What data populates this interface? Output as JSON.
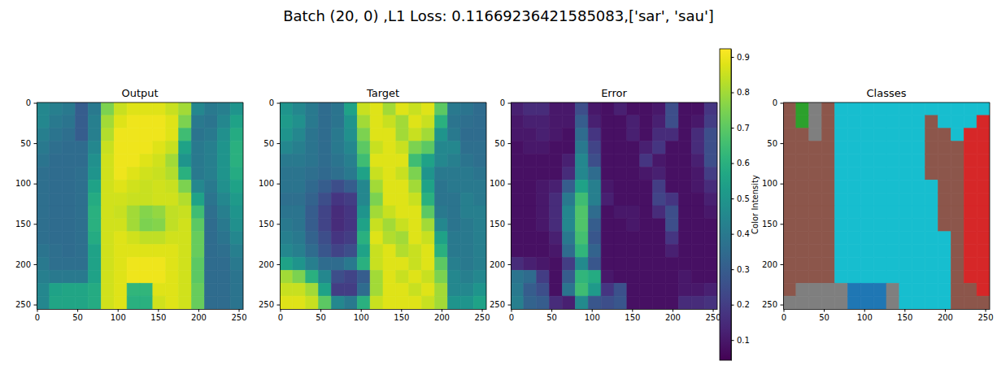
{
  "title": "Batch (20, 0) ,L1 Loss: 0.11669236421585083,['sar', 'sau']",
  "chart_data": [
    {
      "type": "heatmap",
      "title": "Output",
      "xlim": [
        -0.5,
        255.5
      ],
      "ylim": [
        255.5,
        -0.5
      ],
      "xticks": [
        0,
        50,
        100,
        150,
        200,
        250
      ],
      "yticks": [
        0,
        50,
        100,
        150,
        200,
        250
      ],
      "cells": [
        [
          0.45,
          0.42,
          0.4,
          0.3,
          0.4,
          0.75,
          0.85,
          0.88,
          0.88,
          0.88,
          0.85,
          0.8,
          0.45,
          0.4,
          0.42,
          0.5
        ],
        [
          0.45,
          0.4,
          0.38,
          0.3,
          0.42,
          0.8,
          0.88,
          0.9,
          0.9,
          0.9,
          0.88,
          0.75,
          0.4,
          0.38,
          0.45,
          0.55
        ],
        [
          0.42,
          0.38,
          0.36,
          0.3,
          0.42,
          0.82,
          0.9,
          0.9,
          0.9,
          0.9,
          0.88,
          0.65,
          0.38,
          0.4,
          0.48,
          0.58
        ],
        [
          0.4,
          0.36,
          0.35,
          0.35,
          0.45,
          0.85,
          0.9,
          0.9,
          0.9,
          0.88,
          0.85,
          0.55,
          0.4,
          0.42,
          0.5,
          0.6
        ],
        [
          0.38,
          0.35,
          0.35,
          0.35,
          0.48,
          0.86,
          0.9,
          0.9,
          0.88,
          0.86,
          0.8,
          0.5,
          0.4,
          0.42,
          0.5,
          0.6
        ],
        [
          0.36,
          0.35,
          0.35,
          0.36,
          0.5,
          0.86,
          0.9,
          0.88,
          0.86,
          0.85,
          0.82,
          0.6,
          0.4,
          0.42,
          0.5,
          0.58
        ],
        [
          0.36,
          0.35,
          0.35,
          0.36,
          0.55,
          0.86,
          0.88,
          0.86,
          0.85,
          0.86,
          0.85,
          0.75,
          0.45,
          0.4,
          0.48,
          0.55
        ],
        [
          0.36,
          0.35,
          0.35,
          0.36,
          0.58,
          0.86,
          0.86,
          0.85,
          0.85,
          0.86,
          0.86,
          0.82,
          0.55,
          0.38,
          0.45,
          0.52
        ],
        [
          0.36,
          0.35,
          0.35,
          0.36,
          0.6,
          0.86,
          0.85,
          0.8,
          0.76,
          0.78,
          0.84,
          0.85,
          0.65,
          0.36,
          0.42,
          0.5
        ],
        [
          0.36,
          0.35,
          0.35,
          0.36,
          0.6,
          0.86,
          0.86,
          0.8,
          0.75,
          0.76,
          0.84,
          0.86,
          0.7,
          0.35,
          0.4,
          0.48
        ],
        [
          0.36,
          0.35,
          0.35,
          0.36,
          0.58,
          0.86,
          0.88,
          0.86,
          0.84,
          0.84,
          0.86,
          0.86,
          0.72,
          0.35,
          0.38,
          0.45
        ],
        [
          0.38,
          0.36,
          0.35,
          0.36,
          0.55,
          0.86,
          0.88,
          0.88,
          0.88,
          0.88,
          0.88,
          0.86,
          0.72,
          0.35,
          0.36,
          0.42
        ],
        [
          0.4,
          0.36,
          0.36,
          0.36,
          0.55,
          0.86,
          0.88,
          0.9,
          0.9,
          0.9,
          0.88,
          0.86,
          0.7,
          0.35,
          0.35,
          0.4
        ],
        [
          0.42,
          0.4,
          0.4,
          0.4,
          0.55,
          0.86,
          0.88,
          0.9,
          0.9,
          0.9,
          0.88,
          0.86,
          0.7,
          0.35,
          0.35,
          0.38
        ],
        [
          0.45,
          0.55,
          0.56,
          0.56,
          0.58,
          0.86,
          0.88,
          0.62,
          0.62,
          0.88,
          0.88,
          0.86,
          0.72,
          0.35,
          0.35,
          0.38
        ],
        [
          0.45,
          0.56,
          0.56,
          0.56,
          0.58,
          0.86,
          0.88,
          0.6,
          0.6,
          0.86,
          0.88,
          0.86,
          0.72,
          0.35,
          0.35,
          0.38
        ]
      ]
    },
    {
      "type": "heatmap",
      "title": "Target",
      "xlim": [
        -0.5,
        255.5
      ],
      "ylim": [
        255.5,
        -0.5
      ],
      "xticks": [
        0,
        50,
        100,
        150,
        200,
        250
      ],
      "yticks": [
        0,
        50,
        100,
        150,
        200,
        250
      ],
      "cells": [
        [
          0.5,
          0.45,
          0.4,
          0.35,
          0.38,
          0.55,
          0.85,
          0.88,
          0.8,
          0.88,
          0.85,
          0.88,
          0.7,
          0.4,
          0.38,
          0.35
        ],
        [
          0.52,
          0.48,
          0.4,
          0.35,
          0.38,
          0.5,
          0.8,
          0.88,
          0.85,
          0.8,
          0.88,
          0.85,
          0.6,
          0.38,
          0.36,
          0.35
        ],
        [
          0.5,
          0.45,
          0.38,
          0.35,
          0.4,
          0.48,
          0.75,
          0.88,
          0.88,
          0.8,
          0.85,
          0.8,
          0.5,
          0.4,
          0.35,
          0.35
        ],
        [
          0.45,
          0.42,
          0.38,
          0.35,
          0.4,
          0.45,
          0.7,
          0.85,
          0.88,
          0.85,
          0.75,
          0.7,
          0.45,
          0.45,
          0.36,
          0.36
        ],
        [
          0.4,
          0.4,
          0.38,
          0.35,
          0.38,
          0.42,
          0.65,
          0.88,
          0.88,
          0.88,
          0.65,
          0.55,
          0.45,
          0.42,
          0.38,
          0.36
        ],
        [
          0.38,
          0.38,
          0.36,
          0.34,
          0.36,
          0.4,
          0.55,
          0.85,
          0.88,
          0.85,
          0.75,
          0.5,
          0.4,
          0.4,
          0.4,
          0.38
        ],
        [
          0.38,
          0.38,
          0.34,
          0.3,
          0.25,
          0.3,
          0.45,
          0.8,
          0.88,
          0.88,
          0.8,
          0.55,
          0.38,
          0.4,
          0.4,
          0.4
        ],
        [
          0.36,
          0.36,
          0.32,
          0.25,
          0.18,
          0.2,
          0.45,
          0.75,
          0.88,
          0.88,
          0.85,
          0.6,
          0.38,
          0.38,
          0.42,
          0.4
        ],
        [
          0.38,
          0.38,
          0.3,
          0.22,
          0.15,
          0.18,
          0.5,
          0.8,
          0.85,
          0.88,
          0.88,
          0.7,
          0.4,
          0.38,
          0.42,
          0.42
        ],
        [
          0.4,
          0.38,
          0.3,
          0.22,
          0.15,
          0.18,
          0.55,
          0.85,
          0.8,
          0.85,
          0.88,
          0.8,
          0.45,
          0.38,
          0.4,
          0.42
        ],
        [
          0.42,
          0.4,
          0.32,
          0.25,
          0.18,
          0.2,
          0.6,
          0.88,
          0.82,
          0.8,
          0.88,
          0.85,
          0.55,
          0.4,
          0.4,
          0.42
        ],
        [
          0.45,
          0.42,
          0.35,
          0.28,
          0.22,
          0.25,
          0.55,
          0.85,
          0.88,
          0.82,
          0.85,
          0.88,
          0.6,
          0.4,
          0.4,
          0.42
        ],
        [
          0.55,
          0.5,
          0.42,
          0.35,
          0.35,
          0.4,
          0.6,
          0.85,
          0.88,
          0.88,
          0.85,
          0.88,
          0.7,
          0.42,
          0.4,
          0.42
        ],
        [
          0.8,
          0.75,
          0.6,
          0.45,
          0.25,
          0.22,
          0.3,
          0.8,
          0.88,
          0.85,
          0.88,
          0.85,
          0.75,
          0.45,
          0.42,
          0.45
        ],
        [
          0.85,
          0.85,
          0.8,
          0.55,
          0.2,
          0.2,
          0.35,
          0.8,
          0.88,
          0.88,
          0.85,
          0.88,
          0.8,
          0.45,
          0.45,
          0.5
        ],
        [
          0.88,
          0.88,
          0.85,
          0.7,
          0.45,
          0.4,
          0.6,
          0.85,
          0.88,
          0.88,
          0.88,
          0.85,
          0.8,
          0.5,
          0.5,
          0.55
        ]
      ]
    },
    {
      "type": "heatmap",
      "title": "Error",
      "xlim": [
        -0.5,
        255.5
      ],
      "ylim": [
        255.5,
        -0.5
      ],
      "xticks": [
        0,
        50,
        100,
        150,
        200,
        250
      ],
      "yticks": [
        0,
        50,
        100,
        150,
        200,
        250
      ],
      "colorbar": {
        "label": "Color Intensity",
        "range": [
          0.043,
          0.923
        ],
        "ticks": [
          0.1,
          0.2,
          0.3,
          0.4,
          0.5,
          0.6,
          0.7,
          0.8,
          0.9
        ]
      },
      "cells": [
        [
          0.12,
          0.15,
          0.15,
          0.1,
          0.1,
          0.25,
          0.1,
          0.08,
          0.12,
          0.08,
          0.08,
          0.1,
          0.25,
          0.08,
          0.08,
          0.18
        ],
        [
          0.1,
          0.12,
          0.12,
          0.1,
          0.1,
          0.3,
          0.12,
          0.08,
          0.08,
          0.12,
          0.08,
          0.12,
          0.25,
          0.08,
          0.1,
          0.2
        ],
        [
          0.1,
          0.1,
          0.12,
          0.1,
          0.08,
          0.35,
          0.18,
          0.08,
          0.08,
          0.12,
          0.08,
          0.15,
          0.15,
          0.08,
          0.15,
          0.25
        ],
        [
          0.08,
          0.1,
          0.1,
          0.08,
          0.08,
          0.4,
          0.22,
          0.08,
          0.08,
          0.08,
          0.12,
          0.18,
          0.08,
          0.08,
          0.15,
          0.25
        ],
        [
          0.08,
          0.08,
          0.08,
          0.08,
          0.12,
          0.45,
          0.25,
          0.08,
          0.08,
          0.08,
          0.18,
          0.1,
          0.08,
          0.08,
          0.12,
          0.25
        ],
        [
          0.08,
          0.08,
          0.08,
          0.08,
          0.15,
          0.45,
          0.35,
          0.08,
          0.08,
          0.08,
          0.1,
          0.12,
          0.08,
          0.08,
          0.1,
          0.2
        ],
        [
          0.08,
          0.08,
          0.1,
          0.12,
          0.3,
          0.55,
          0.42,
          0.1,
          0.08,
          0.08,
          0.08,
          0.2,
          0.08,
          0.08,
          0.1,
          0.15
        ],
        [
          0.08,
          0.08,
          0.1,
          0.15,
          0.4,
          0.65,
          0.42,
          0.12,
          0.08,
          0.08,
          0.08,
          0.22,
          0.18,
          0.08,
          0.08,
          0.12
        ],
        [
          0.08,
          0.08,
          0.1,
          0.15,
          0.45,
          0.68,
          0.35,
          0.08,
          0.1,
          0.1,
          0.08,
          0.15,
          0.25,
          0.08,
          0.08,
          0.1
        ],
        [
          0.08,
          0.08,
          0.1,
          0.15,
          0.45,
          0.68,
          0.3,
          0.08,
          0.08,
          0.1,
          0.08,
          0.08,
          0.25,
          0.08,
          0.08,
          0.08
        ],
        [
          0.08,
          0.08,
          0.08,
          0.12,
          0.4,
          0.66,
          0.28,
          0.08,
          0.08,
          0.08,
          0.08,
          0.08,
          0.18,
          0.08,
          0.08,
          0.08
        ],
        [
          0.08,
          0.08,
          0.08,
          0.1,
          0.35,
          0.62,
          0.32,
          0.08,
          0.08,
          0.08,
          0.08,
          0.08,
          0.12,
          0.08,
          0.08,
          0.08
        ],
        [
          0.15,
          0.12,
          0.1,
          0.08,
          0.2,
          0.46,
          0.28,
          0.08,
          0.08,
          0.08,
          0.08,
          0.08,
          0.08,
          0.08,
          0.08,
          0.08
        ],
        [
          0.38,
          0.35,
          0.2,
          0.08,
          0.3,
          0.62,
          0.58,
          0.1,
          0.08,
          0.08,
          0.08,
          0.08,
          0.08,
          0.1,
          0.08,
          0.08
        ],
        [
          0.4,
          0.3,
          0.25,
          0.08,
          0.38,
          0.65,
          0.52,
          0.18,
          0.26,
          0.08,
          0.08,
          0.08,
          0.08,
          0.1,
          0.1,
          0.12
        ],
        [
          0.42,
          0.32,
          0.3,
          0.15,
          0.12,
          0.46,
          0.28,
          0.25,
          0.28,
          0.08,
          0.08,
          0.08,
          0.08,
          0.15,
          0.15,
          0.17
        ]
      ]
    },
    {
      "type": "classmap",
      "title": "Classes",
      "xlim": [
        -0.5,
        255.5
      ],
      "ylim": [
        255.5,
        -0.5
      ],
      "xticks": [
        0,
        50,
        100,
        150,
        200,
        250
      ],
      "yticks": [
        0,
        50,
        100,
        150,
        200,
        250
      ],
      "colors": [
        "#8c564b",
        "#17becf",
        "#d62728",
        "#2ca02c",
        "#7f7f7f",
        "#1f77b4"
      ],
      "cells": [
        [
          0,
          3,
          4,
          0,
          1,
          1,
          1,
          1,
          1,
          1,
          1,
          1,
          1,
          1,
          1,
          1
        ],
        [
          0,
          3,
          4,
          0,
          1,
          1,
          1,
          1,
          1,
          1,
          1,
          0,
          1,
          1,
          1,
          2
        ],
        [
          0,
          0,
          4,
          0,
          1,
          1,
          1,
          1,
          1,
          1,
          1,
          0,
          0,
          1,
          2,
          2
        ],
        [
          0,
          0,
          0,
          0,
          1,
          1,
          1,
          1,
          1,
          1,
          1,
          0,
          0,
          0,
          2,
          2
        ],
        [
          0,
          0,
          0,
          0,
          1,
          1,
          1,
          1,
          1,
          1,
          1,
          0,
          0,
          0,
          2,
          2
        ],
        [
          0,
          0,
          0,
          0,
          1,
          1,
          1,
          1,
          1,
          1,
          1,
          0,
          0,
          0,
          2,
          2
        ],
        [
          0,
          0,
          0,
          0,
          1,
          1,
          1,
          1,
          1,
          1,
          1,
          1,
          0,
          0,
          2,
          2
        ],
        [
          0,
          0,
          0,
          0,
          1,
          1,
          1,
          1,
          1,
          1,
          1,
          1,
          0,
          0,
          2,
          2
        ],
        [
          0,
          0,
          0,
          0,
          1,
          1,
          1,
          1,
          1,
          1,
          1,
          1,
          0,
          0,
          2,
          2
        ],
        [
          0,
          0,
          0,
          0,
          1,
          1,
          1,
          1,
          1,
          1,
          1,
          1,
          0,
          0,
          2,
          2
        ],
        [
          0,
          0,
          0,
          0,
          1,
          1,
          1,
          1,
          1,
          1,
          1,
          1,
          1,
          0,
          2,
          2
        ],
        [
          0,
          0,
          0,
          0,
          1,
          1,
          1,
          1,
          1,
          1,
          1,
          1,
          1,
          0,
          2,
          2
        ],
        [
          0,
          0,
          0,
          0,
          1,
          1,
          1,
          1,
          1,
          1,
          1,
          1,
          1,
          0,
          2,
          2
        ],
        [
          0,
          0,
          0,
          0,
          1,
          1,
          1,
          1,
          1,
          1,
          1,
          1,
          1,
          0,
          2,
          2
        ],
        [
          0,
          4,
          4,
          4,
          4,
          5,
          5,
          5,
          4,
          1,
          1,
          1,
          1,
          0,
          0,
          2
        ],
        [
          4,
          4,
          4,
          4,
          4,
          5,
          5,
          5,
          4,
          1,
          1,
          1,
          1,
          0,
          0,
          0
        ]
      ]
    }
  ]
}
